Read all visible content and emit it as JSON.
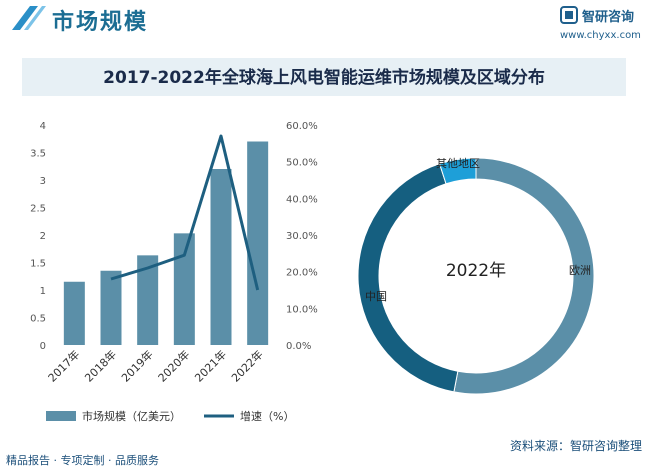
{
  "header": {
    "title": "市场规模",
    "brand_name": "智研咨询",
    "brand_url": "www.chyxx.com"
  },
  "footer": {
    "left_text": "精品报告 · 专项定制 · 品质服务",
    "source_text": "资料来源：智研咨询整理"
  },
  "colors": {
    "bar": "#5b8fa8",
    "line": "#1e5f80",
    "europe": "#5b8fa8",
    "china": "#155f80",
    "other": "#1e9fd8",
    "title_band": "#e7f0f5"
  },
  "chart_data": [
    {
      "type": "bar",
      "title": "2017-2022年全球海上风电智能运维市场规模及区域分布",
      "categories": [
        "2017年",
        "2018年",
        "2019年",
        "2020年",
        "2021年",
        "2022年"
      ],
      "series": [
        {
          "name": "市场规模（亿美元）",
          "type": "bar",
          "axis": "left",
          "values": [
            1.15,
            1.35,
            1.63,
            2.03,
            3.2,
            3.7
          ]
        },
        {
          "name": "增速（%）",
          "type": "line",
          "axis": "right",
          "values": [
            null,
            18.0,
            21.0,
            24.5,
            57.0,
            15.0
          ]
        }
      ],
      "left_axis": {
        "ylim": [
          0,
          4
        ],
        "ticks": [
          "0",
          "0.5",
          "1",
          "1.5",
          "2",
          "2.5",
          "3",
          "3.5",
          "4"
        ]
      },
      "right_axis": {
        "ylim": [
          0,
          60
        ],
        "ticks": [
          "0.0%",
          "10.0%",
          "20.0%",
          "30.0%",
          "40.0%",
          "50.0%",
          "60.0%"
        ]
      },
      "grid": false,
      "legend": "bottom-left"
    },
    {
      "type": "pie",
      "center_label": "2022年",
      "slices": [
        {
          "label": "欧洲",
          "value": 53
        },
        {
          "label": "中国",
          "value": 42
        },
        {
          "label": "其他地区",
          "value": 5
        }
      ]
    }
  ]
}
